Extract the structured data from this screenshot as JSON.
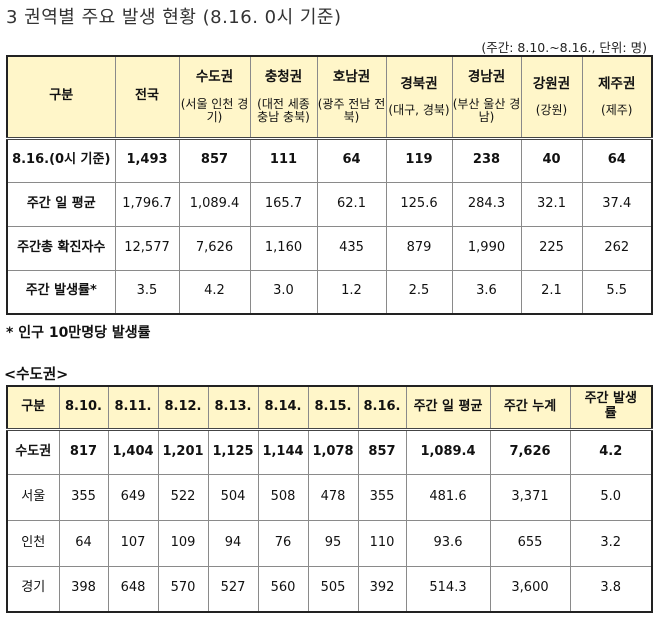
{
  "title": "3 권역별 주요 발생 현황 (8.16. 0시 기준)",
  "unit": "(주간: 8.10.~8.16., 단위: 명)",
  "table1": {
    "corner": "구분",
    "national": "전국",
    "regions": [
      {
        "name": "수도권",
        "sub": "(서울 인천 경기)"
      },
      {
        "name": "충청권",
        "sub": "(대전 세종 충남 충북)"
      },
      {
        "name": "호남권",
        "sub": "(광주 전남 전북)"
      },
      {
        "name": "경북권",
        "sub": "(대구, 경북)"
      },
      {
        "name": "경남권",
        "sub": "(부산 울산 경남)"
      },
      {
        "name": "강원권",
        "sub": "(강원)"
      },
      {
        "name": "제주권",
        "sub": "(제주)"
      }
    ],
    "rows": [
      {
        "label": "8.16.(0시 기준)",
        "values": [
          "1,493",
          "857",
          "111",
          "64",
          "119",
          "238",
          "40",
          "64"
        ]
      },
      {
        "label": "주간 일 평균",
        "values": [
          "1,796.7",
          "1,089.4",
          "165.7",
          "62.1",
          "125.6",
          "284.3",
          "32.1",
          "37.4"
        ]
      },
      {
        "label": "주간총 확진자수",
        "values": [
          "12,577",
          "7,626",
          "1,160",
          "435",
          "879",
          "1,990",
          "225",
          "262"
        ]
      },
      {
        "label": "주간 발생률*",
        "values": [
          "3.5",
          "4.2",
          "3.0",
          "1.2",
          "2.5",
          "3.6",
          "2.1",
          "5.5"
        ]
      }
    ]
  },
  "note": "* 인구 10만명당 발생률",
  "section": "<수도권>",
  "table2": {
    "headers": [
      "구분",
      "8.10.",
      "8.11.",
      "8.12.",
      "8.13.",
      "8.14.",
      "8.15.",
      "8.16.",
      "주간 일 평균",
      "주간 누계",
      "주간 발생률"
    ],
    "rows": [
      {
        "label": "수도권",
        "values": [
          "817",
          "1,404",
          "1,201",
          "1,125",
          "1,144",
          "1,078",
          "857",
          "1,089.4",
          "7,626",
          "4.2"
        ]
      },
      {
        "label": "서울",
        "values": [
          "355",
          "649",
          "522",
          "504",
          "508",
          "478",
          "355",
          "481.6",
          "3,371",
          "5.0"
        ]
      },
      {
        "label": "인천",
        "values": [
          "64",
          "107",
          "109",
          "94",
          "76",
          "95",
          "110",
          "93.6",
          "655",
          "3.2"
        ]
      },
      {
        "label": "경기",
        "values": [
          "398",
          "648",
          "570",
          "527",
          "560",
          "505",
          "392",
          "514.3",
          "3,600",
          "3.8"
        ]
      }
    ]
  }
}
